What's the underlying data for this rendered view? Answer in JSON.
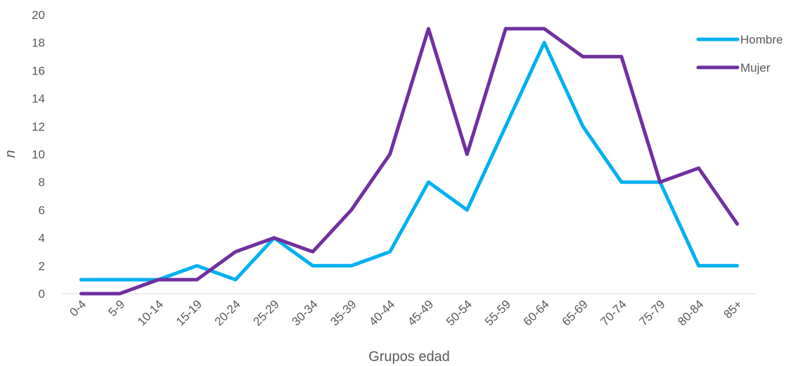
{
  "chart_data": {
    "type": "line",
    "title": "",
    "xlabel": "Grupos edad",
    "ylabel": "n",
    "ylim": [
      0,
      20
    ],
    "yticks": [
      0,
      2,
      4,
      6,
      8,
      10,
      12,
      14,
      16,
      18,
      20
    ],
    "grid": false,
    "legend_position": "top-right",
    "categories": [
      "0-4",
      "5-9",
      "10-14",
      "15-19",
      "20-24",
      "25-29",
      "30-34",
      "35-39",
      "40-44",
      "45-49",
      "50-54",
      "55-59",
      "60-64",
      "65-69",
      "70-74",
      "75-79",
      "80-84",
      "85+"
    ],
    "series": [
      {
        "name": "Hombre",
        "color": "#00B0F0",
        "values": [
          1,
          1,
          1,
          2,
          1,
          4,
          2,
          2,
          3,
          8,
          6,
          12,
          18,
          12,
          8,
          8,
          2,
          2
        ]
      },
      {
        "name": "Mujer",
        "color": "#7030A0",
        "values": [
          0,
          0,
          1,
          1,
          3,
          4,
          3,
          6,
          10,
          19,
          10,
          19,
          19,
          17,
          17,
          8,
          9,
          5
        ]
      }
    ]
  }
}
